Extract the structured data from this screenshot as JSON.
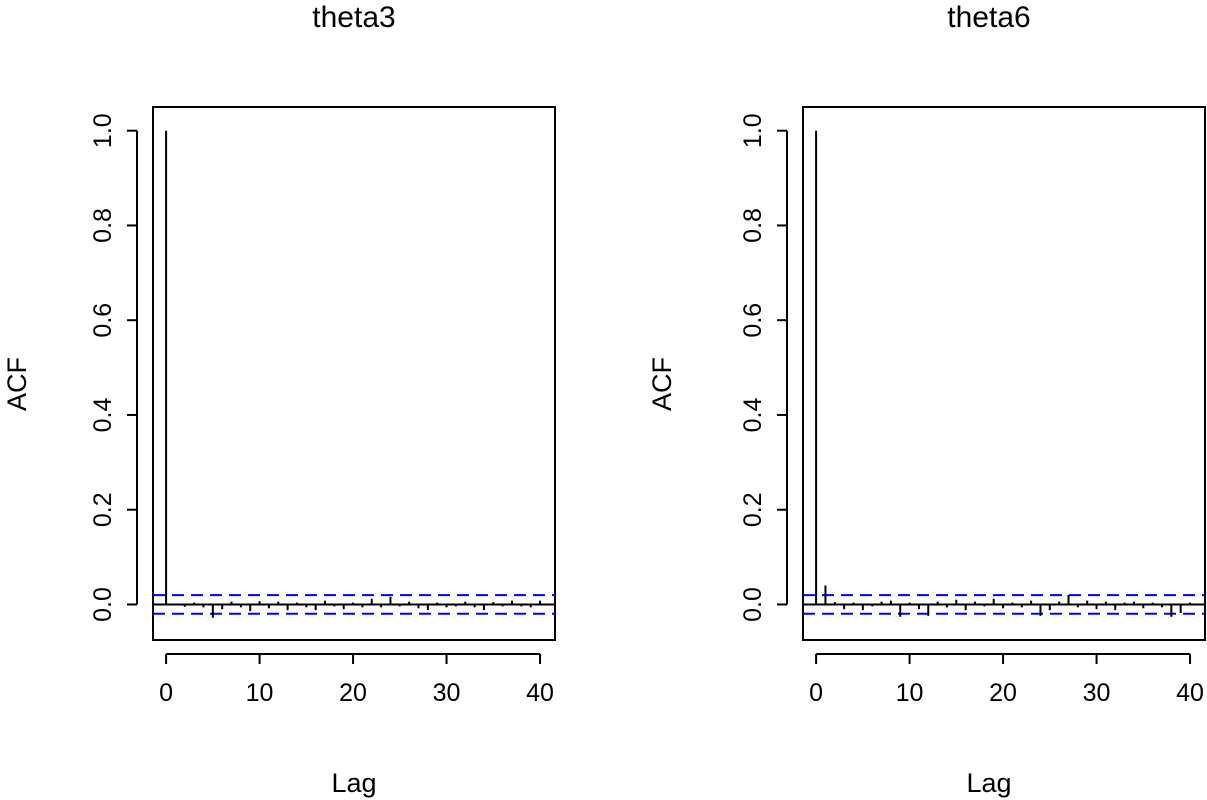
{
  "chart_data": [
    {
      "type": "bar",
      "title": "theta3",
      "xlabel": "Lag",
      "ylabel": "ACF",
      "xlim": [
        -1.4,
        41.6
      ],
      "ylim": [
        -0.075,
        1.05
      ],
      "x_ticks": [
        "0",
        "10",
        "20",
        "30",
        "40"
      ],
      "y_ticks": [
        "0.0",
        "0.2",
        "0.4",
        "0.6",
        "0.8",
        "1.0"
      ],
      "confidence_band": 0.0196,
      "colors": {
        "bars": "#000000",
        "confidence": "#0000ff",
        "zero_line": "#000000"
      },
      "grid": false,
      "lags": [
        0,
        1,
        2,
        3,
        4,
        5,
        6,
        7,
        8,
        9,
        10,
        11,
        12,
        13,
        14,
        15,
        16,
        17,
        18,
        19,
        20,
        21,
        22,
        23,
        24,
        25,
        26,
        27,
        28,
        29,
        30,
        31,
        32,
        33,
        34,
        35,
        36,
        37,
        38,
        39,
        40
      ],
      "values": [
        1.0,
        0.002,
        -0.005,
        0.004,
        -0.006,
        -0.028,
        -0.01,
        0.006,
        -0.006,
        -0.014,
        0.007,
        -0.008,
        0.006,
        -0.012,
        0.004,
        -0.006,
        -0.012,
        0.008,
        -0.004,
        -0.01,
        0.004,
        -0.006,
        0.012,
        -0.006,
        0.016,
        -0.004,
        0.006,
        -0.008,
        -0.012,
        0.004,
        -0.006,
        -0.004,
        0.006,
        -0.006,
        -0.012,
        0.005,
        -0.004,
        0.008,
        -0.004,
        -0.006,
        0.008
      ]
    },
    {
      "type": "bar",
      "title": "theta6",
      "xlabel": "Lag",
      "ylabel": "ACF",
      "xlim": [
        -1.4,
        41.6
      ],
      "ylim": [
        -0.075,
        1.05
      ],
      "x_ticks": [
        "0",
        "10",
        "20",
        "30",
        "40"
      ],
      "y_ticks": [
        "0.0",
        "0.2",
        "0.4",
        "0.6",
        "0.8",
        "1.0"
      ],
      "confidence_band": 0.0196,
      "colors": {
        "bars": "#000000",
        "confidence": "#0000ff",
        "zero_line": "#000000"
      },
      "grid": false,
      "lags": [
        0,
        1,
        2,
        3,
        4,
        5,
        6,
        7,
        8,
        9,
        10,
        11,
        12,
        13,
        14,
        15,
        16,
        17,
        18,
        19,
        20,
        21,
        22,
        23,
        24,
        25,
        26,
        27,
        28,
        29,
        30,
        31,
        32,
        33,
        34,
        35,
        36,
        37,
        38,
        39,
        40
      ],
      "values": [
        1.0,
        0.04,
        0.005,
        -0.01,
        0.004,
        -0.012,
        -0.004,
        0.006,
        0.008,
        -0.026,
        0.004,
        -0.01,
        -0.024,
        0.006,
        -0.006,
        0.01,
        -0.012,
        0.006,
        -0.004,
        0.012,
        -0.008,
        0.004,
        -0.006,
        0.008,
        -0.024,
        -0.012,
        0.006,
        0.02,
        -0.006,
        0.008,
        -0.01,
        0.006,
        -0.012,
        0.004,
        0.006,
        -0.008,
        0.004,
        -0.006,
        -0.026,
        -0.018,
        0.004
      ]
    }
  ]
}
